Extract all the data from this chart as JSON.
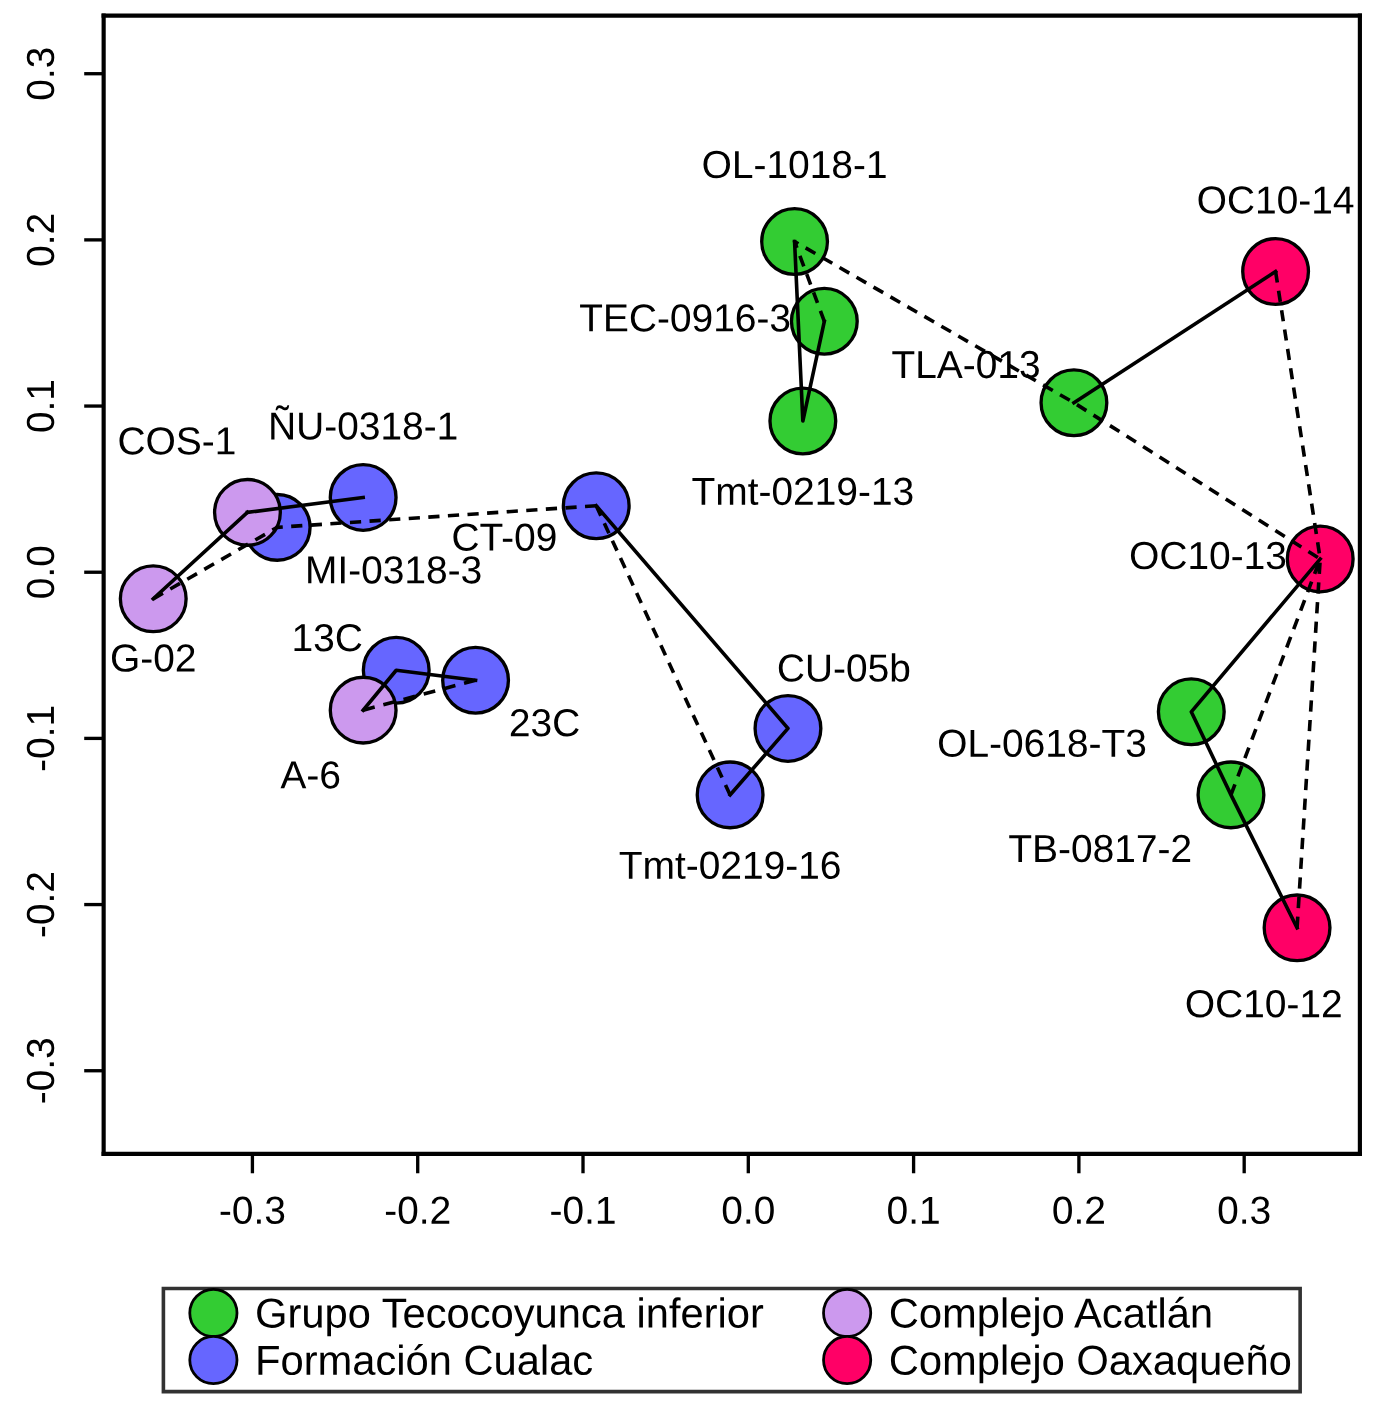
{
  "chart_data": {
    "type": "scatter",
    "xlim": [
      -0.39,
      0.37
    ],
    "ylim": [
      -0.35,
      0.335
    ],
    "xticks": [
      -0.3,
      -0.2,
      -0.1,
      {
        "value": 0,
        "label": "0.0"
      },
      0.1,
      0.2,
      0.3
    ],
    "yticks": [
      -0.3,
      -0.2,
      -0.1,
      {
        "value": 0,
        "label": "0.0"
      },
      0.1,
      0.2,
      0.3
    ],
    "grid": false,
    "legend": "bottom",
    "marker": "circle",
    "series": [
      {
        "type": "line",
        "marker": "none",
        "line_style": "solid",
        "color": "#000000",
        "x": [
          0.028,
          0.033,
          0.046
        ],
        "values": [
          0.199,
          0.091,
          0.151
        ]
      },
      {
        "type": "line",
        "marker": "none",
        "line_style": "dashed",
        "color": "#000000",
        "x": [
          0.046,
          0.028,
          0.197,
          0.346,
          0.319
        ],
        "values": [
          0.151,
          0.199,
          0.102,
          0.008,
          0.181
        ]
      },
      {
        "type": "line",
        "marker": "none",
        "line_style": "solid",
        "color": "#000000",
        "x": [
          0.197,
          0.319
        ],
        "values": [
          0.102,
          0.181
        ]
      },
      {
        "type": "line",
        "marker": "none",
        "line_style": "solid",
        "color": "#000000",
        "x": [
          0.346,
          0.268,
          0.292,
          0.332
        ],
        "values": [
          0.008,
          -0.084,
          -0.134,
          -0.214
        ]
      },
      {
        "type": "line",
        "marker": "none",
        "line_style": "dashed",
        "color": "#000000",
        "x": [
          0.292,
          0.346,
          0.332
        ],
        "values": [
          -0.134,
          0.008,
          -0.214
        ]
      },
      {
        "type": "line",
        "marker": "none",
        "line_style": "solid",
        "color": "#000000",
        "x": [
          -0.092,
          0.024,
          -0.011
        ],
        "values": [
          0.04,
          -0.094,
          -0.134
        ]
      },
      {
        "type": "line",
        "marker": "none",
        "line_style": "dashed",
        "color": "#000000",
        "x": [
          -0.092,
          -0.011
        ],
        "values": [
          0.04,
          -0.134
        ]
      },
      {
        "type": "line",
        "marker": "none",
        "line_style": "solid",
        "color": "#000000",
        "x": [
          -0.36,
          -0.303
        ],
        "values": [
          -0.016,
          0.036
        ]
      },
      {
        "type": "line",
        "marker": "none",
        "line_style": "dashed",
        "color": "#000000",
        "x": [
          -0.36,
          -0.285,
          -0.092
        ],
        "values": [
          -0.016,
          0.027,
          0.04
        ]
      },
      {
        "type": "line",
        "marker": "none",
        "line_style": "solid",
        "color": "#000000",
        "x": [
          -0.303,
          -0.233
        ],
        "values": [
          0.036,
          0.045
        ]
      },
      {
        "type": "line",
        "marker": "none",
        "line_style": "solid",
        "color": "#000000",
        "x": [
          -0.233,
          -0.213,
          -0.165
        ],
        "values": [
          -0.083,
          -0.059,
          -0.065
        ]
      },
      {
        "type": "line",
        "marker": "none",
        "line_style": "dashed",
        "color": "#000000",
        "x": [
          -0.233,
          -0.165
        ],
        "values": [
          -0.083,
          -0.065
        ]
      },
      {
        "name": "Grupo Tecocoyunca inferior",
        "color": "#33cc33",
        "x": [
          0.028,
          0.046,
          0.033,
          0.197,
          0.268,
          0.292
        ],
        "values": [
          0.199,
          0.151,
          0.091,
          0.102,
          -0.084,
          -0.134
        ]
      },
      {
        "name": "Formación Cualac",
        "color": "#6666ff",
        "x": [
          -0.285,
          -0.233,
          -0.092,
          -0.213,
          -0.165,
          0.024,
          -0.011
        ],
        "values": [
          0.027,
          0.045,
          0.04,
          -0.059,
          -0.065,
          -0.094,
          -0.134
        ]
      },
      {
        "name": "Complejo Acatlán",
        "color": "#cc99ee",
        "x": [
          -0.303,
          -0.36,
          -0.233
        ],
        "values": [
          0.036,
          -0.016,
          -0.083
        ]
      },
      {
        "name": "Complejo Oaxaqueño",
        "color": "#ff0066",
        "x": [
          0.319,
          0.346,
          0.332
        ],
        "values": [
          0.181,
          0.008,
          -0.214
        ]
      }
    ],
    "annotations": [
      {
        "text": "OL-1018-1",
        "x": 0.028,
        "y": 0.199
      },
      {
        "text": "TEC-0916-3",
        "x": 0.046,
        "y": 0.151
      },
      {
        "text": "Tmt-0219-13",
        "x": 0.033,
        "y": 0.091
      },
      {
        "text": "TLA-013",
        "x": 0.197,
        "y": 0.102
      },
      {
        "text": "OL-0618-T3",
        "x": 0.268,
        "y": -0.084
      },
      {
        "text": "TB-0817-2",
        "x": 0.292,
        "y": -0.134
      },
      {
        "text": "MI-0318-3",
        "x": -0.285,
        "y": 0.027
      },
      {
        "text": "ÑU-0318-1",
        "x": -0.233,
        "y": 0.045
      },
      {
        "text": "CT-09",
        "x": -0.092,
        "y": 0.04
      },
      {
        "text": "13C",
        "x": -0.213,
        "y": -0.059
      },
      {
        "text": "23C",
        "x": -0.165,
        "y": -0.065
      },
      {
        "text": "CU-05b",
        "x": 0.024,
        "y": -0.094
      },
      {
        "text": "Tmt-0219-16",
        "x": -0.011,
        "y": -0.134
      },
      {
        "text": "COS-1",
        "x": -0.303,
        "y": 0.036
      },
      {
        "text": "G-02",
        "x": -0.36,
        "y": -0.016
      },
      {
        "text": "A-6",
        "x": -0.233,
        "y": -0.083
      },
      {
        "text": "OC10-14",
        "x": 0.319,
        "y": 0.181
      },
      {
        "text": "OC10-13",
        "x": 0.346,
        "y": 0.008
      },
      {
        "text": "OC10-12",
        "x": 0.332,
        "y": -0.214
      }
    ]
  }
}
